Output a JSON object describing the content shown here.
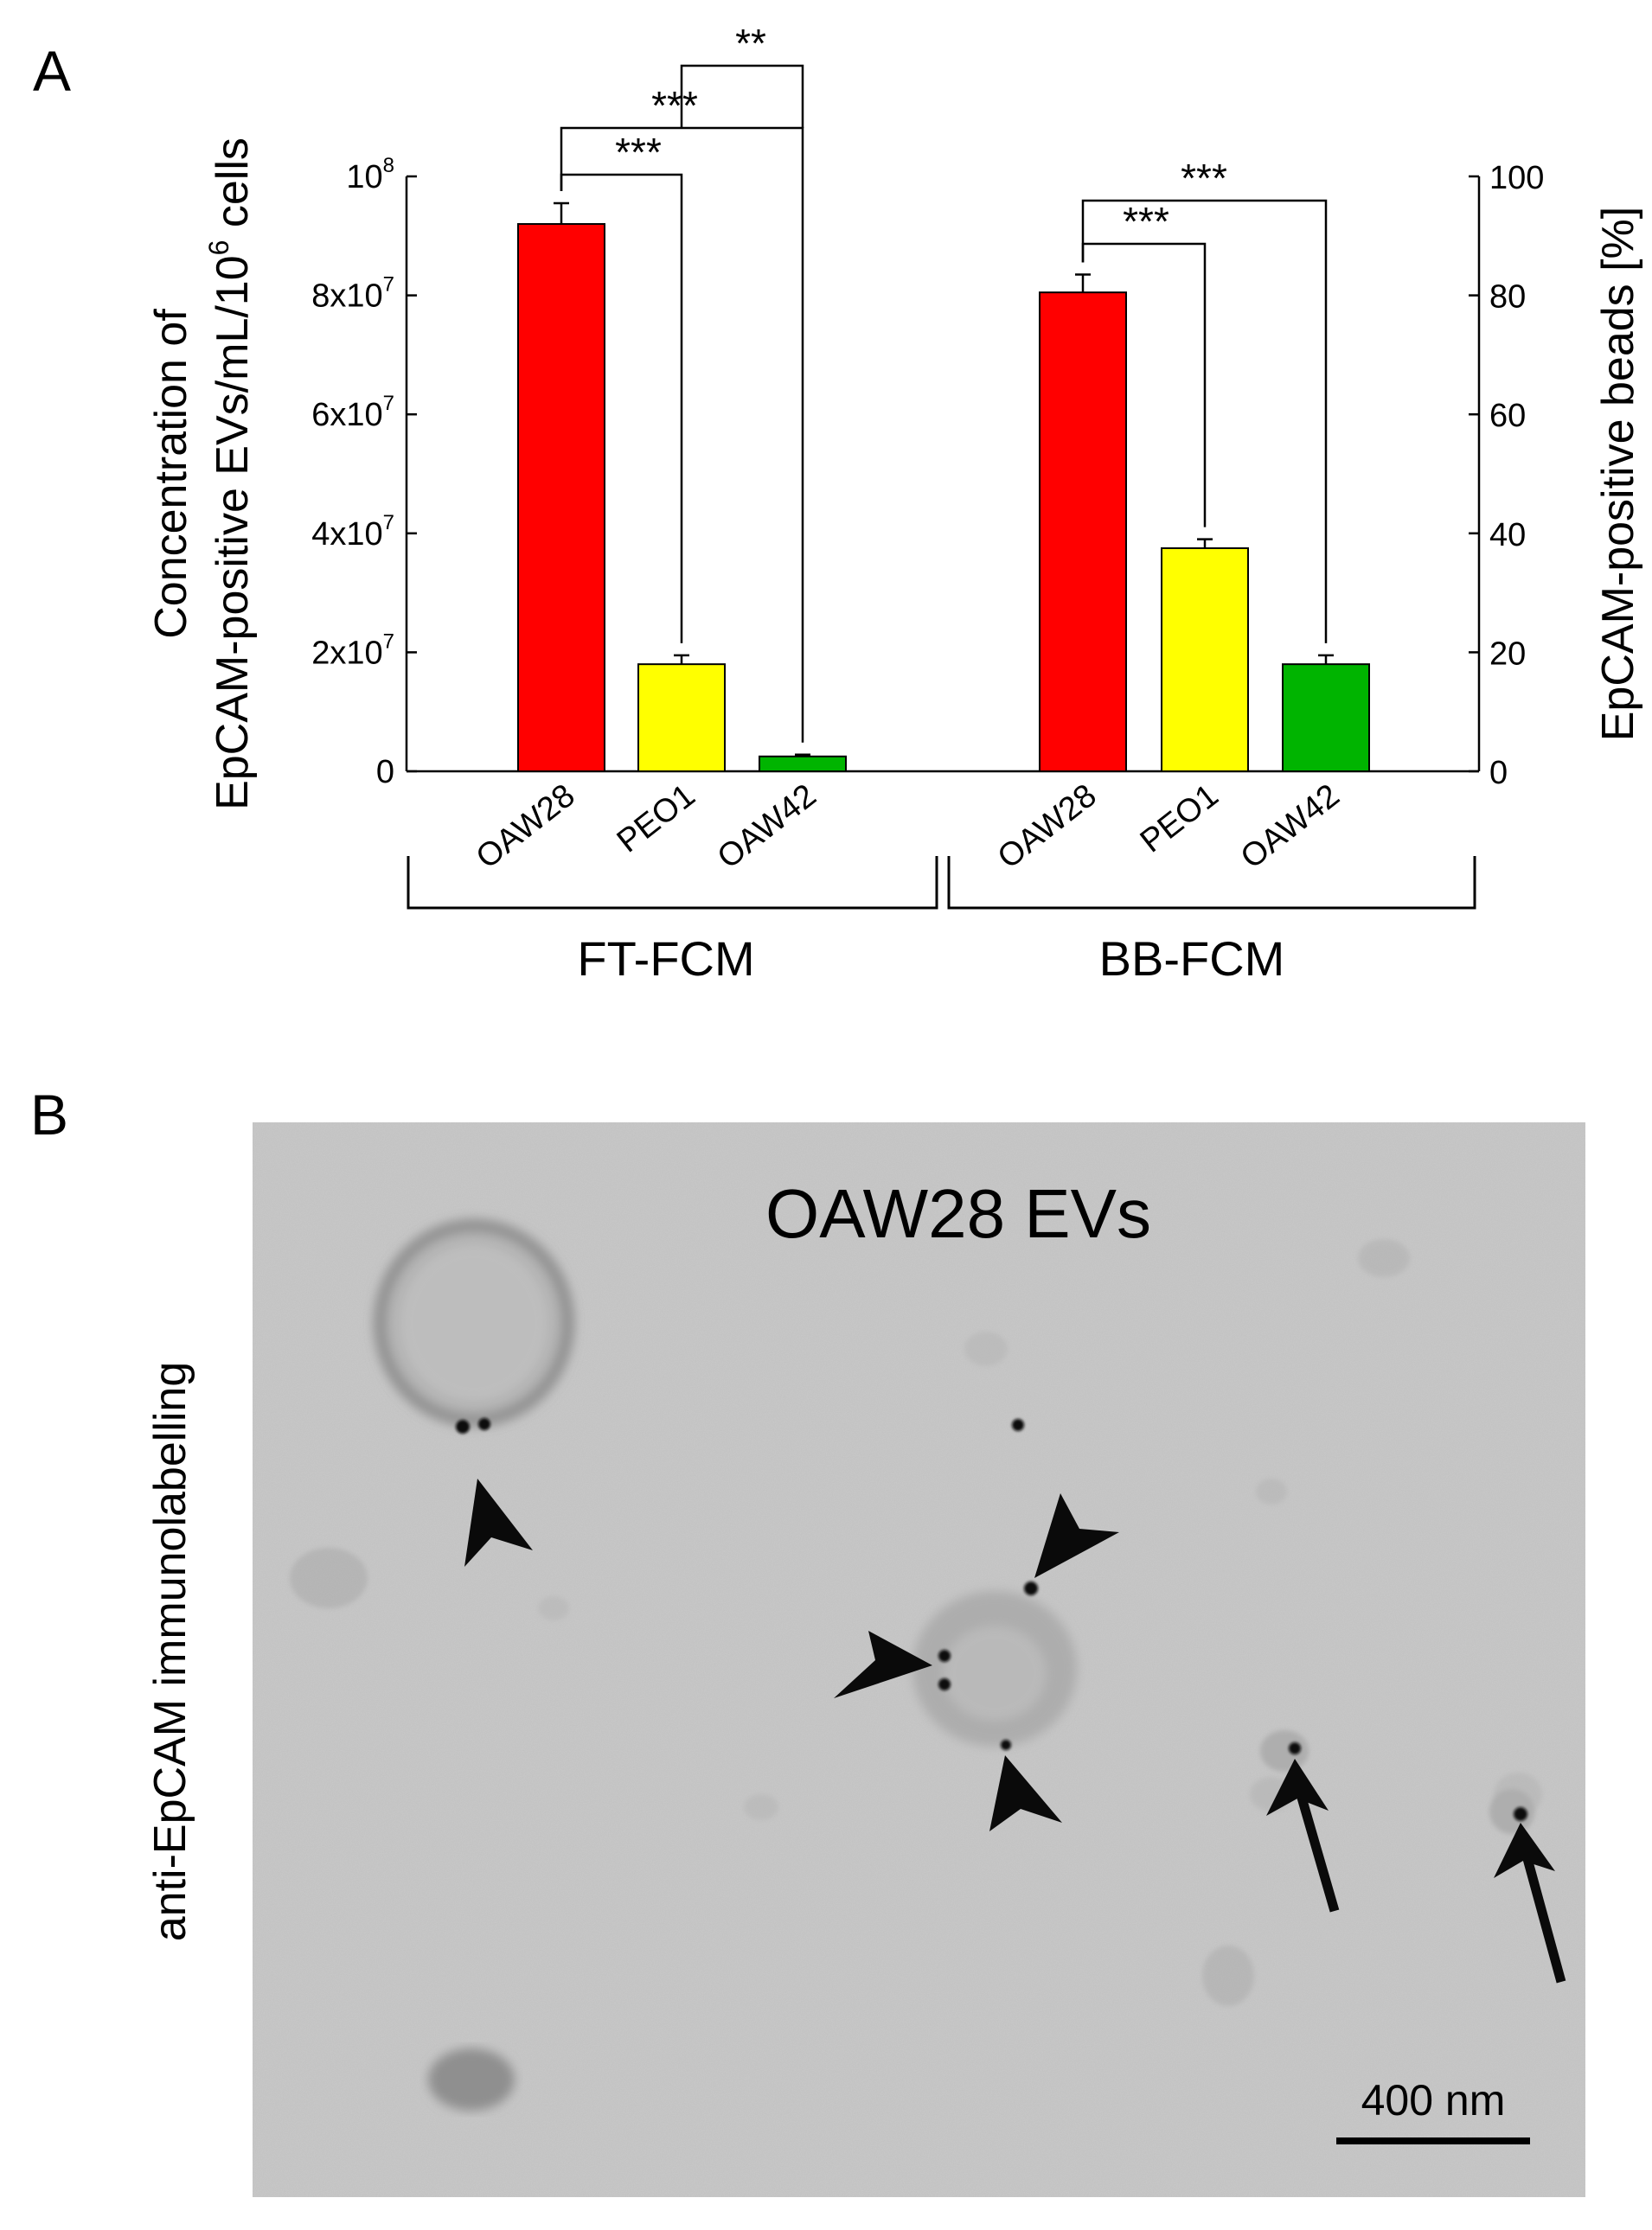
{
  "panels": {
    "a_label": "A",
    "b_label": "B"
  },
  "chart_data": {
    "type": "bar",
    "left_axis": {
      "label_line1": "Concentration of",
      "label_line2": "EpCAM-positive EVs/mL/10",
      "label_line2_sup": "6",
      "label_line2_tail": " cells",
      "ylim": [
        0,
        100000000
      ],
      "ticks": [
        {
          "value": 0,
          "base": "0",
          "exp": ""
        },
        {
          "value": 20000000,
          "base": "2x10",
          "exp": "7"
        },
        {
          "value": 40000000,
          "base": "4x10",
          "exp": "7"
        },
        {
          "value": 60000000,
          "base": "6x10",
          "exp": "7"
        },
        {
          "value": 80000000,
          "base": "8x10",
          "exp": "7"
        },
        {
          "value": 100000000,
          "base": "10",
          "exp": "8"
        }
      ]
    },
    "right_axis": {
      "label": "EpCAM-positive beads [%]",
      "ylim": [
        0,
        100
      ],
      "ticks": [
        "0",
        "20",
        "40",
        "60",
        "80",
        "100"
      ]
    },
    "groups": [
      {
        "name": "FT-FCM",
        "axis": "left",
        "bars": [
          {
            "category": "OAW28",
            "value": 92000000,
            "error": 3500000,
            "color": "#ff0000"
          },
          {
            "category": "PEO1",
            "value": 18000000,
            "error": 1500000,
            "color": "#ffff00"
          },
          {
            "category": "OAW42",
            "value": 2500000,
            "error": 300000,
            "color": "#00b400"
          }
        ],
        "brackets": [
          {
            "from": 0,
            "to": 1,
            "label": "***"
          },
          {
            "from": 0,
            "to": 2,
            "label": "***"
          },
          {
            "from": 1,
            "to": 2,
            "label": "**"
          }
        ]
      },
      {
        "name": "BB-FCM",
        "axis": "right",
        "bars": [
          {
            "category": "OAW28",
            "value": 80.5,
            "error": 3.0,
            "color": "#ff0000"
          },
          {
            "category": "PEO1",
            "value": 37.5,
            "error": 1.5,
            "color": "#ffff00"
          },
          {
            "category": "OAW42",
            "value": 18,
            "error": 1.5,
            "color": "#00b400"
          }
        ],
        "brackets": [
          {
            "from": 0,
            "to": 1,
            "label": "***"
          },
          {
            "from": 0,
            "to": 2,
            "label": "***"
          }
        ]
      }
    ]
  },
  "micrograph": {
    "side_label": "anti-EpCAM immunolabelling",
    "title": "OAW28 EVs",
    "scale_bar_label": "400 nm"
  }
}
